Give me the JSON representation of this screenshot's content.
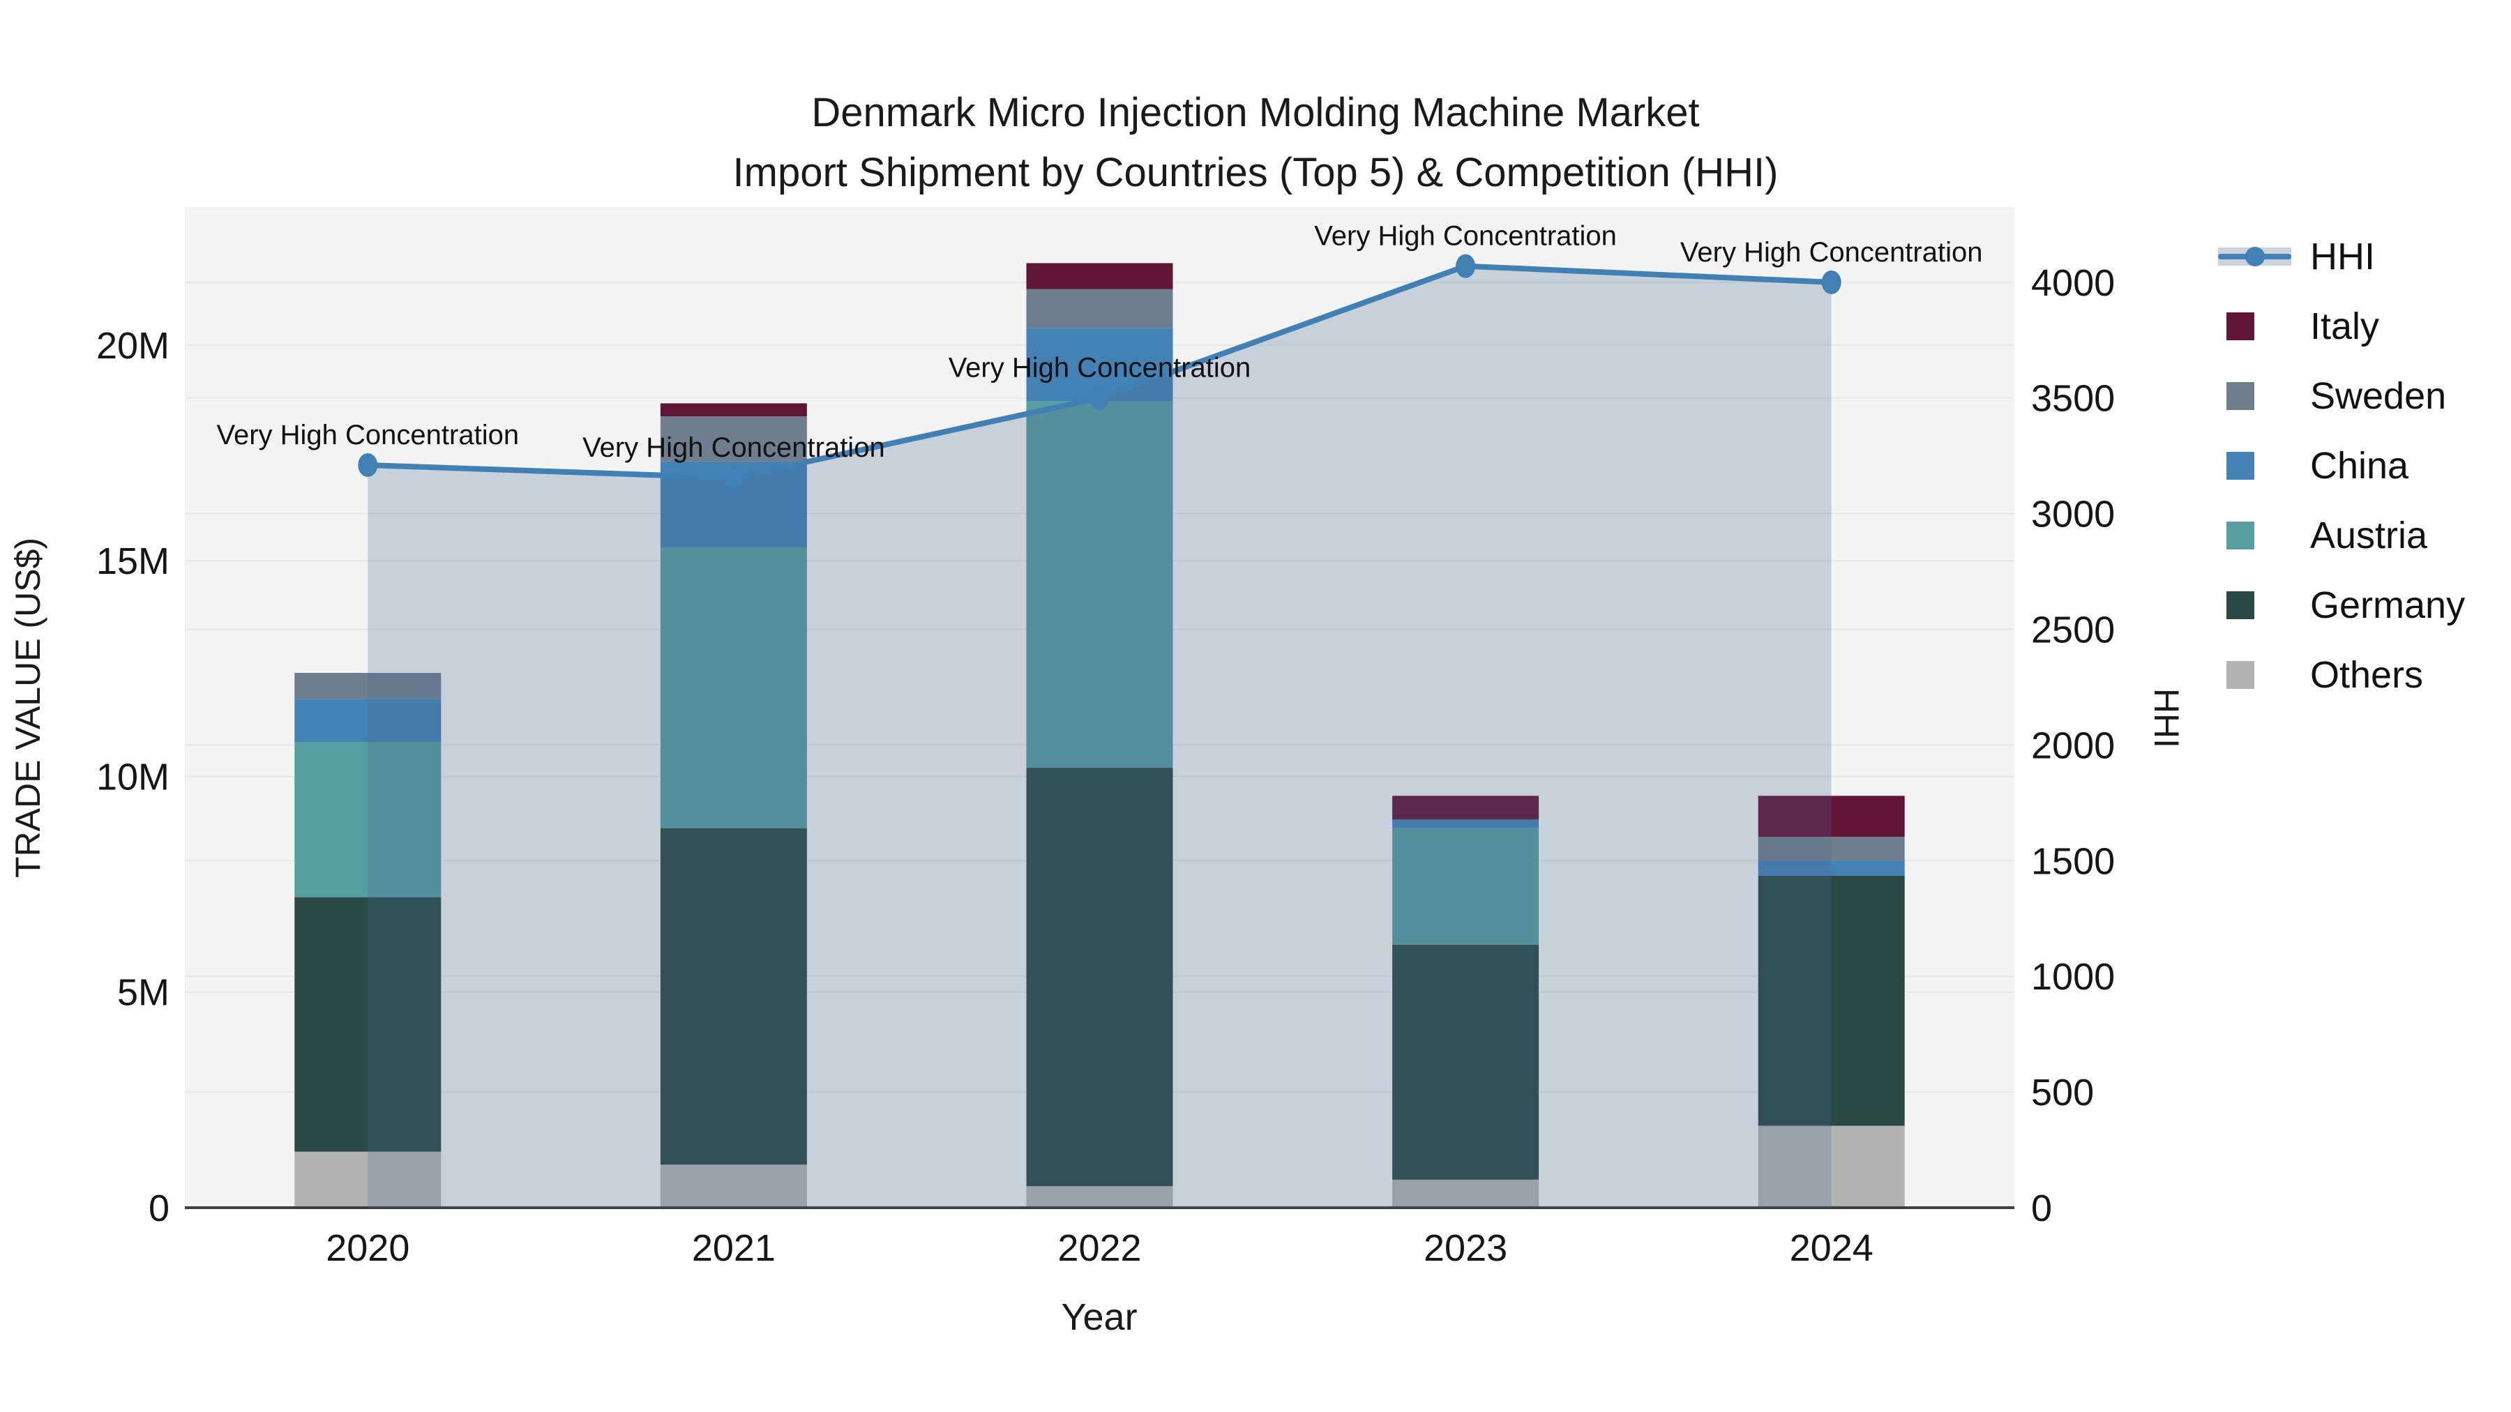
{
  "title": {
    "line1": "Denmark Micro Injection Molding Machine Market",
    "line2": "Import Shipment by Countries (Top 5) & Competition (HHI)"
  },
  "axes": {
    "x_title": "Year",
    "x_ticks": [
      "2020",
      "2021",
      "2022",
      "2023",
      "2024"
    ],
    "y_left_title": "TRADE VALUE (US$)",
    "y_left_ticks": [
      {
        "label": "0",
        "value": 0
      },
      {
        "label": "5M",
        "value": 5000000
      },
      {
        "label": "10M",
        "value": 10000000
      },
      {
        "label": "15M",
        "value": 15000000
      },
      {
        "label": "20M",
        "value": 20000000
      }
    ],
    "y_left_range": [
      0,
      23200000
    ],
    "y_right_title": "HHI",
    "y_right_ticks": [
      {
        "label": "0",
        "value": 0
      },
      {
        "label": "500",
        "value": 500
      },
      {
        "label": "1000",
        "value": 1000
      },
      {
        "label": "1500",
        "value": 1500
      },
      {
        "label": "2000",
        "value": 2000
      },
      {
        "label": "2500",
        "value": 2500
      },
      {
        "label": "3000",
        "value": 3000
      },
      {
        "label": "3500",
        "value": 3500
      },
      {
        "label": "4000",
        "value": 4000
      }
    ],
    "y_right_range": [
      0,
      4325
    ]
  },
  "colors": {
    "italy": "#601537",
    "sweden": "#6f7e8e",
    "china": "#4482b6",
    "austria": "#579ea0",
    "germany": "#2b4944",
    "others": "#b3b3b3",
    "hhi": "#4180b4",
    "hhi_area_fill": "rgba(70,105,145,0.25)",
    "plot_bg": "#f3f3f3",
    "gridline": "#e6e6e6",
    "axis_line": "#3f3f3f",
    "text": "#161616"
  },
  "legend": {
    "items": [
      {
        "label": "HHI",
        "type": "line",
        "color_key": "hhi"
      },
      {
        "label": "Italy",
        "type": "swatch",
        "color_key": "italy"
      },
      {
        "label": "Sweden",
        "type": "swatch",
        "color_key": "sweden"
      },
      {
        "label": "China",
        "type": "swatch",
        "color_key": "china"
      },
      {
        "label": "Austria",
        "type": "swatch",
        "color_key": "austria"
      },
      {
        "label": "Germany",
        "type": "swatch",
        "color_key": "germany"
      },
      {
        "label": "Others",
        "type": "swatch",
        "color_key": "others"
      }
    ]
  },
  "annotations": {
    "labels": [
      "Very High Concentration",
      "Very High Concentration",
      "Very High Concentration",
      "Very High Concentration",
      "Very High Concentration"
    ]
  },
  "chart_data": {
    "type": "combo-stacked-bar-line",
    "x": [
      2020,
      2021,
      2022,
      2023,
      2024
    ],
    "xlabel": "Year",
    "ylabel_left": "TRADE VALUE (US$)",
    "ylabel_right": "HHI",
    "ylim_left": [
      0,
      23200000
    ],
    "ylim_right": [
      0,
      4325
    ],
    "grid": true,
    "legend_position": "right",
    "bar_series": [
      {
        "name": "Others",
        "color_key": "others",
        "values": [
          1300000,
          1000000,
          500000,
          650000,
          1900000
        ]
      },
      {
        "name": "Germany",
        "color_key": "germany",
        "values": [
          5900000,
          7800000,
          9700000,
          5450000,
          5800000
        ]
      },
      {
        "name": "Austria",
        "color_key": "austria",
        "values": [
          3600000,
          6500000,
          8500000,
          2700000,
          0
        ]
      },
      {
        "name": "China",
        "color_key": "china",
        "values": [
          1000000,
          2000000,
          1700000,
          200000,
          350000
        ]
      },
      {
        "name": "Sweden",
        "color_key": "sweden",
        "values": [
          600000,
          1050000,
          900000,
          0,
          550000
        ]
      },
      {
        "name": "Italy",
        "color_key": "italy",
        "values": [
          0,
          300000,
          600000,
          550000,
          950000
        ]
      }
    ],
    "bar_totals": [
      12400000,
      18650000,
      21900000,
      9550000,
      9550000
    ],
    "line_series": {
      "name": "HHI",
      "axis": "right",
      "color_key": "hhi",
      "values": [
        3210,
        3155,
        3500,
        4070,
        4000
      ],
      "area_fill": true
    }
  }
}
